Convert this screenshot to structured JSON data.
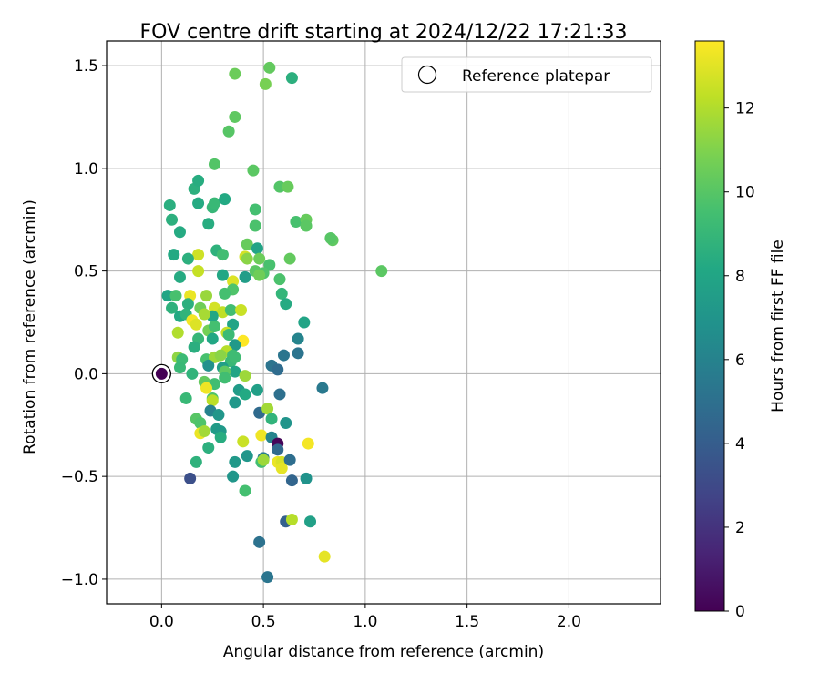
{
  "chart_data": {
    "type": "scatter",
    "title": "FOV centre drift starting at 2024/12/22 17:21:33",
    "xlabel": "Angular distance from reference (arcmin)",
    "ylabel": "Rotation from reference (arcmin)",
    "xlim": [
      -0.27,
      2.45
    ],
    "ylim": [
      -1.12,
      1.62
    ],
    "xticks": [
      0.0,
      0.5,
      1.0,
      1.5,
      2.0
    ],
    "xtick_labels": [
      "0.0",
      "0.5",
      "1.0",
      "1.5",
      "2.0"
    ],
    "yticks": [
      -1.0,
      -0.5,
      0.0,
      0.5,
      1.0,
      1.5
    ],
    "ytick_labels": [
      "−1.0",
      "−0.5",
      "0.0",
      "0.5",
      "1.0",
      "1.5"
    ],
    "grid": true,
    "legend": {
      "position": "top-right",
      "label": "Reference platepar"
    },
    "reference_point": {
      "x": 0.0,
      "y": 0.0,
      "c": 0.0
    },
    "colorbar": {
      "label": "Hours from first FF file",
      "cmap": "viridis",
      "range": [
        0,
        13.6
      ],
      "ticks": [
        0,
        2,
        4,
        6,
        8,
        10,
        12
      ],
      "tick_labels": [
        "0",
        "2",
        "4",
        "6",
        "8",
        "10",
        "12"
      ]
    },
    "points": [
      {
        "x": 0.53,
        "y": 1.49,
        "c": 10.3
      },
      {
        "x": 0.36,
        "y": 1.46,
        "c": 10.5
      },
      {
        "x": 0.51,
        "y": 1.41,
        "c": 10.8
      },
      {
        "x": 0.64,
        "y": 1.44,
        "c": 8.6
      },
      {
        "x": 0.36,
        "y": 1.25,
        "c": 10.2
      },
      {
        "x": 0.33,
        "y": 1.18,
        "c": 10.0
      },
      {
        "x": 0.26,
        "y": 1.02,
        "c": 9.9
      },
      {
        "x": 0.45,
        "y": 0.99,
        "c": 10.1
      },
      {
        "x": 0.58,
        "y": 0.91,
        "c": 9.9
      },
      {
        "x": 0.62,
        "y": 0.91,
        "c": 10.4
      },
      {
        "x": 0.16,
        "y": 0.9,
        "c": 8.6
      },
      {
        "x": 0.18,
        "y": 0.94,
        "c": 8.4
      },
      {
        "x": 0.04,
        "y": 0.82,
        "c": 8.5
      },
      {
        "x": 0.18,
        "y": 0.83,
        "c": 8.3
      },
      {
        "x": 0.25,
        "y": 0.81,
        "c": 9.0
      },
      {
        "x": 0.26,
        "y": 0.83,
        "c": 9.1
      },
      {
        "x": 0.31,
        "y": 0.85,
        "c": 8.2
      },
      {
        "x": 0.46,
        "y": 0.8,
        "c": 9.5
      },
      {
        "x": 0.05,
        "y": 0.75,
        "c": 8.6
      },
      {
        "x": 0.23,
        "y": 0.73,
        "c": 8.4
      },
      {
        "x": 0.46,
        "y": 0.72,
        "c": 9.7
      },
      {
        "x": 0.66,
        "y": 0.74,
        "c": 9.6
      },
      {
        "x": 0.71,
        "y": 0.75,
        "c": 10.4
      },
      {
        "x": 0.71,
        "y": 0.72,
        "c": 10.1
      },
      {
        "x": 0.09,
        "y": 0.69,
        "c": 8.3
      },
      {
        "x": 0.84,
        "y": 0.65,
        "c": 10.2
      },
      {
        "x": 0.83,
        "y": 0.66,
        "c": 10.0
      },
      {
        "x": 0.42,
        "y": 0.63,
        "c": 10.4
      },
      {
        "x": 0.27,
        "y": 0.6,
        "c": 8.7
      },
      {
        "x": 0.47,
        "y": 0.61,
        "c": 7.9
      },
      {
        "x": 0.3,
        "y": 0.58,
        "c": 9.4
      },
      {
        "x": 0.06,
        "y": 0.58,
        "c": 8.2
      },
      {
        "x": 0.18,
        "y": 0.58,
        "c": 12.6
      },
      {
        "x": 0.13,
        "y": 0.56,
        "c": 8.6
      },
      {
        "x": 0.41,
        "y": 0.57,
        "c": 12.7
      },
      {
        "x": 0.42,
        "y": 0.56,
        "c": 11.2
      },
      {
        "x": 0.48,
        "y": 0.56,
        "c": 10.5
      },
      {
        "x": 0.53,
        "y": 0.53,
        "c": 9.6
      },
      {
        "x": 0.63,
        "y": 0.56,
        "c": 10.3
      },
      {
        "x": 0.46,
        "y": 0.5,
        "c": 10.1
      },
      {
        "x": 0.5,
        "y": 0.49,
        "c": 9.8
      },
      {
        "x": 0.48,
        "y": 0.48,
        "c": 10.6
      },
      {
        "x": 0.18,
        "y": 0.5,
        "c": 12.4
      },
      {
        "x": 0.3,
        "y": 0.48,
        "c": 8.1
      },
      {
        "x": 0.58,
        "y": 0.46,
        "c": 9.7
      },
      {
        "x": 1.08,
        "y": 0.5,
        "c": 10.1
      },
      {
        "x": 0.09,
        "y": 0.47,
        "c": 8.3
      },
      {
        "x": 0.35,
        "y": 0.45,
        "c": 12.9
      },
      {
        "x": 0.35,
        "y": 0.41,
        "c": 9.8
      },
      {
        "x": 0.41,
        "y": 0.47,
        "c": 7.5
      },
      {
        "x": 0.03,
        "y": 0.38,
        "c": 8.0
      },
      {
        "x": 0.07,
        "y": 0.38,
        "c": 9.6
      },
      {
        "x": 0.14,
        "y": 0.38,
        "c": 13.2
      },
      {
        "x": 0.22,
        "y": 0.38,
        "c": 11.5
      },
      {
        "x": 0.31,
        "y": 0.39,
        "c": 9.5
      },
      {
        "x": 0.59,
        "y": 0.39,
        "c": 8.9
      },
      {
        "x": 0.61,
        "y": 0.34,
        "c": 8.3
      },
      {
        "x": 0.05,
        "y": 0.32,
        "c": 8.7
      },
      {
        "x": 0.09,
        "y": 0.28,
        "c": 8.2
      },
      {
        "x": 0.13,
        "y": 0.34,
        "c": 8.6
      },
      {
        "x": 0.19,
        "y": 0.32,
        "c": 10.6
      },
      {
        "x": 0.26,
        "y": 0.32,
        "c": 12.7
      },
      {
        "x": 0.3,
        "y": 0.3,
        "c": 12.3
      },
      {
        "x": 0.34,
        "y": 0.31,
        "c": 9.4
      },
      {
        "x": 0.39,
        "y": 0.31,
        "c": 12.5
      },
      {
        "x": 0.12,
        "y": 0.29,
        "c": 8.8
      },
      {
        "x": 0.25,
        "y": 0.28,
        "c": 8.1
      },
      {
        "x": 0.15,
        "y": 0.26,
        "c": 13.4
      },
      {
        "x": 0.21,
        "y": 0.29,
        "c": 11.8
      },
      {
        "x": 0.17,
        "y": 0.24,
        "c": 12.9
      },
      {
        "x": 0.35,
        "y": 0.24,
        "c": 7.9
      },
      {
        "x": 0.7,
        "y": 0.25,
        "c": 7.9
      },
      {
        "x": 0.08,
        "y": 0.2,
        "c": 12.0
      },
      {
        "x": 0.23,
        "y": 0.21,
        "c": 10.7
      },
      {
        "x": 0.26,
        "y": 0.23,
        "c": 9.5
      },
      {
        "x": 0.32,
        "y": 0.2,
        "c": 12.4
      },
      {
        "x": 0.33,
        "y": 0.19,
        "c": 9.2
      },
      {
        "x": 0.18,
        "y": 0.17,
        "c": 9.0
      },
      {
        "x": 0.25,
        "y": 0.17,
        "c": 8.1
      },
      {
        "x": 0.4,
        "y": 0.16,
        "c": 13.6
      },
      {
        "x": 0.36,
        "y": 0.14,
        "c": 7.3
      },
      {
        "x": 0.67,
        "y": 0.17,
        "c": 6.1
      },
      {
        "x": 0.16,
        "y": 0.13,
        "c": 8.5
      },
      {
        "x": 0.32,
        "y": 0.11,
        "c": 12.1
      },
      {
        "x": 0.35,
        "y": 0.09,
        "c": 9.3
      },
      {
        "x": 0.08,
        "y": 0.08,
        "c": 11.3
      },
      {
        "x": 0.1,
        "y": 0.07,
        "c": 9.2
      },
      {
        "x": 0.22,
        "y": 0.07,
        "c": 9.6
      },
      {
        "x": 0.26,
        "y": 0.08,
        "c": 11.6
      },
      {
        "x": 0.29,
        "y": 0.09,
        "c": 11.2
      },
      {
        "x": 0.34,
        "y": 0.06,
        "c": 9.1
      },
      {
        "x": 0.36,
        "y": 0.08,
        "c": 9.3
      },
      {
        "x": 0.6,
        "y": 0.09,
        "c": 5.3
      },
      {
        "x": 0.67,
        "y": 0.1,
        "c": 5.2
      },
      {
        "x": 0.09,
        "y": 0.03,
        "c": 9.1
      },
      {
        "x": 0.15,
        "y": 0.0,
        "c": 8.8
      },
      {
        "x": 0.23,
        "y": 0.04,
        "c": 6.8
      },
      {
        "x": 0.3,
        "y": 0.03,
        "c": 7.6
      },
      {
        "x": 0.36,
        "y": 0.01,
        "c": 8.0
      },
      {
        "x": 0.31,
        "y": 0.01,
        "c": 10.2
      },
      {
        "x": 0.54,
        "y": 0.04,
        "c": 5.2
      },
      {
        "x": 0.57,
        "y": 0.02,
        "c": 4.8
      },
      {
        "x": 0.21,
        "y": -0.04,
        "c": 10.3
      },
      {
        "x": 0.31,
        "y": -0.02,
        "c": 9.4
      },
      {
        "x": 0.41,
        "y": -0.01,
        "c": 11.6
      },
      {
        "x": 0.26,
        "y": -0.05,
        "c": 9.4
      },
      {
        "x": 0.12,
        "y": -0.12,
        "c": 9.1
      },
      {
        "x": 0.22,
        "y": -0.07,
        "c": 13.3
      },
      {
        "x": 0.25,
        "y": -0.12,
        "c": 9.8
      },
      {
        "x": 0.38,
        "y": -0.08,
        "c": 7.4
      },
      {
        "x": 0.41,
        "y": -0.1,
        "c": 8.2
      },
      {
        "x": 0.47,
        "y": -0.08,
        "c": 7.6
      },
      {
        "x": 0.58,
        "y": -0.1,
        "c": 5.0
      },
      {
        "x": 0.79,
        "y": -0.07,
        "c": 5.5
      },
      {
        "x": 0.25,
        "y": -0.13,
        "c": 12.2
      },
      {
        "x": 0.36,
        "y": -0.14,
        "c": 7.2
      },
      {
        "x": 0.24,
        "y": -0.18,
        "c": 6.0
      },
      {
        "x": 0.28,
        "y": -0.2,
        "c": 7.1
      },
      {
        "x": 0.48,
        "y": -0.19,
        "c": 4.7
      },
      {
        "x": 0.52,
        "y": -0.17,
        "c": 11.7
      },
      {
        "x": 0.17,
        "y": -0.22,
        "c": 10.0
      },
      {
        "x": 0.19,
        "y": -0.24,
        "c": 9.8
      },
      {
        "x": 0.54,
        "y": -0.22,
        "c": 8.8
      },
      {
        "x": 0.61,
        "y": -0.24,
        "c": 7.0
      },
      {
        "x": 0.19,
        "y": -0.29,
        "c": 13.2
      },
      {
        "x": 0.21,
        "y": -0.28,
        "c": 11.7
      },
      {
        "x": 0.27,
        "y": -0.27,
        "c": 7.4
      },
      {
        "x": 0.29,
        "y": -0.28,
        "c": 7.3
      },
      {
        "x": 0.29,
        "y": -0.31,
        "c": 8.4
      },
      {
        "x": 0.4,
        "y": -0.33,
        "c": 12.5
      },
      {
        "x": 0.49,
        "y": -0.3,
        "c": 13.3
      },
      {
        "x": 0.54,
        "y": -0.31,
        "c": 6.1
      },
      {
        "x": 0.57,
        "y": -0.34,
        "c": 0.2
      },
      {
        "x": 0.72,
        "y": -0.34,
        "c": 13.4
      },
      {
        "x": 0.23,
        "y": -0.36,
        "c": 8.6
      },
      {
        "x": 0.42,
        "y": -0.4,
        "c": 7.1
      },
      {
        "x": 0.5,
        "y": -0.41,
        "c": 5.7
      },
      {
        "x": 0.57,
        "y": -0.37,
        "c": 4.6
      },
      {
        "x": 0.17,
        "y": -0.43,
        "c": 8.7
      },
      {
        "x": 0.36,
        "y": -0.43,
        "c": 7.3
      },
      {
        "x": 0.49,
        "y": -0.43,
        "c": 9.4
      },
      {
        "x": 0.5,
        "y": -0.42,
        "c": 11.6
      },
      {
        "x": 0.57,
        "y": -0.43,
        "c": 13.2
      },
      {
        "x": 0.59,
        "y": -0.43,
        "c": 12.8
      },
      {
        "x": 0.59,
        "y": -0.46,
        "c": 13.1
      },
      {
        "x": 0.63,
        "y": -0.42,
        "c": 4.9
      },
      {
        "x": 0.14,
        "y": -0.51,
        "c": 3.3
      },
      {
        "x": 0.35,
        "y": -0.5,
        "c": 7.1
      },
      {
        "x": 0.64,
        "y": -0.52,
        "c": 4.4
      },
      {
        "x": 0.71,
        "y": -0.51,
        "c": 6.9
      },
      {
        "x": 0.41,
        "y": -0.57,
        "c": 9.5
      },
      {
        "x": 0.61,
        "y": -0.72,
        "c": 4.2
      },
      {
        "x": 0.64,
        "y": -0.71,
        "c": 12.1
      },
      {
        "x": 0.73,
        "y": -0.72,
        "c": 7.7
      },
      {
        "x": 0.8,
        "y": -0.89,
        "c": 13.1
      },
      {
        "x": 0.48,
        "y": -0.82,
        "c": 5.1
      },
      {
        "x": 0.52,
        "y": -0.99,
        "c": 5.3
      }
    ]
  }
}
